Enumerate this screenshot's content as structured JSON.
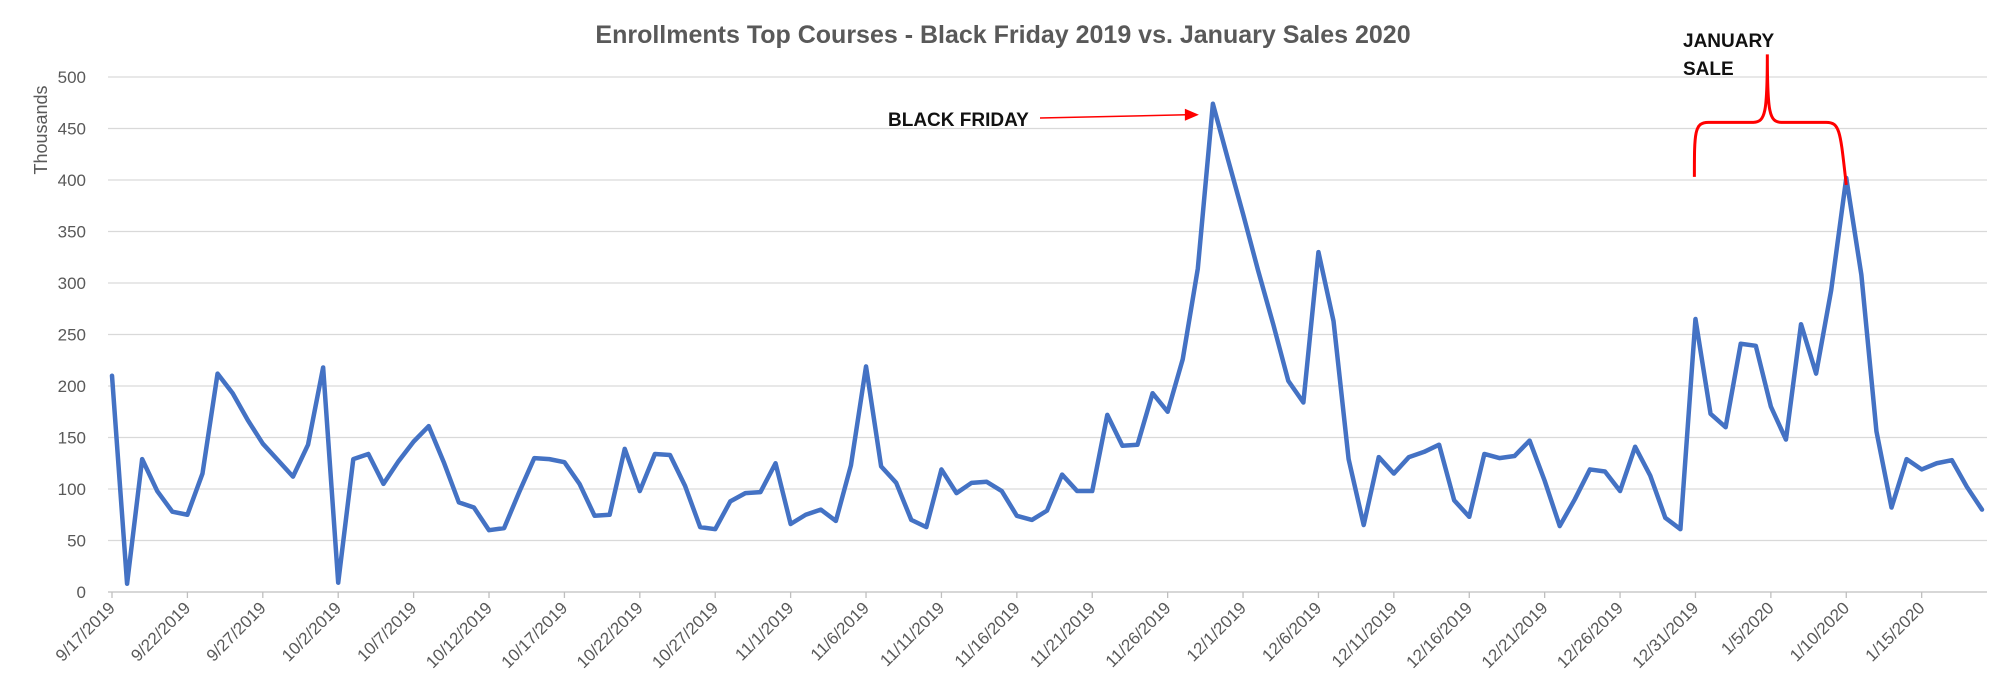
{
  "chart_data": {
    "type": "line",
    "title": "Enrollments Top Courses - Black Friday 2019 vs. January Sales 2020",
    "ylabel": "Thousands",
    "xlabel": "",
    "ylim": [
      0,
      500
    ],
    "yticks": [
      0,
      50,
      100,
      150,
      200,
      250,
      300,
      350,
      400,
      450,
      500
    ],
    "x_ticks": [
      "9/17/2019",
      "9/22/2019",
      "9/27/2019",
      "10/2/2019",
      "10/7/2019",
      "10/12/2019",
      "10/17/2019",
      "10/22/2019",
      "10/27/2019",
      "11/1/2019",
      "11/6/2019",
      "11/11/2019",
      "11/16/2019",
      "11/21/2019",
      "11/26/2019",
      "12/1/2019",
      "12/6/2019",
      "12/11/2019",
      "12/16/2019",
      "12/21/2019",
      "12/26/2019",
      "12/31/2019",
      "1/5/2020",
      "1/10/2020",
      "1/15/2020"
    ],
    "grid": true,
    "legend": "none",
    "color": "#4472C4",
    "series": [
      {
        "values": [
          210,
          8,
          129,
          98,
          78,
          75,
          115,
          212,
          193,
          167,
          144,
          128,
          112,
          143,
          218,
          9,
          129,
          134,
          105,
          127,
          146,
          161,
          126,
          87,
          82,
          60,
          62,
          97,
          130,
          129,
          126,
          105,
          74,
          75,
          139,
          98,
          134,
          133,
          103,
          63,
          61,
          88,
          96,
          97,
          125,
          66,
          75,
          80,
          69,
          123,
          219,
          122,
          106,
          70,
          63,
          119,
          96,
          106,
          107,
          98,
          74,
          70,
          79,
          114,
          98,
          98,
          172,
          142,
          143,
          193,
          175,
          226,
          314,
          474,
          420,
          367,
          312,
          260,
          205,
          184,
          330,
          263,
          129,
          65,
          131,
          115,
          131,
          136,
          143,
          89,
          73,
          134,
          130,
          132,
          147,
          108,
          64,
          90,
          119,
          117,
          98,
          141,
          113,
          72,
          61,
          265,
          173,
          160,
          241,
          239,
          180,
          148,
          260,
          212,
          293,
          402,
          308,
          156,
          82,
          129,
          119,
          125,
          128,
          102,
          80
        ]
      }
    ],
    "annotations": [
      {
        "text": "BLACK FRIDAY",
        "target_index": 73
      },
      {
        "text_lines": [
          "JANUARY",
          "SALE"
        ],
        "range_index": [
          104,
          115
        ]
      }
    ],
    "annotation_color": "#FF0000"
  }
}
